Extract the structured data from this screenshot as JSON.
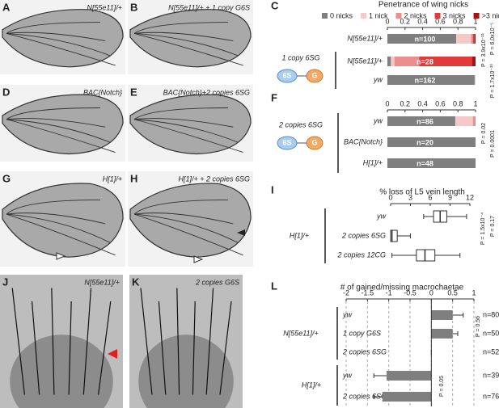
{
  "images": [
    {
      "letter": "A",
      "label": "N[55e11]/+"
    },
    {
      "letter": "B",
      "label": "N[55e11]/+ + 1 copy G6S"
    },
    {
      "letter": "D",
      "label": "BAC{Notch}"
    },
    {
      "letter": "E",
      "label": "BAC{Notch}+2 copies 6SG"
    },
    {
      "letter": "G",
      "label": "H[1]/+"
    },
    {
      "letter": "H",
      "label": "H[1]/+ + 2 copies 6SG"
    },
    {
      "letter": "J",
      "label": "N[55e11]/+"
    },
    {
      "letter": "K",
      "label": "2 copies G6S"
    }
  ],
  "chart_data": [
    {
      "panel": "C",
      "type": "bar",
      "orientation": "horizontal",
      "stacked": true,
      "title": "Penetrance of wing nicks",
      "legend": "top",
      "categories": [
        "N[55e11]/+",
        "N[55e11]/+",
        "yw"
      ],
      "group": {
        "label": "1 copy 6SG",
        "construct": [
          "6S",
          "G"
        ]
      },
      "series": [
        {
          "name": "0 nicks",
          "color": "#7f7f7f",
          "values": [
            0.78,
            0.04,
            0.99
          ]
        },
        {
          "name": "1 nick",
          "color": "#f6c9c9",
          "values": [
            0.17,
            0.04,
            0.01
          ]
        },
        {
          "name": "2 nicks",
          "color": "#ec8e8e",
          "values": [
            0.02,
            0.28,
            0
          ]
        },
        {
          "name": "3 nicks",
          "color": "#e03a3a",
          "values": [
            0.02,
            0.6,
            0
          ]
        },
        {
          "name": ">3 nicks",
          "color": "#a51414",
          "values": [
            0.01,
            0.04,
            0
          ]
        }
      ],
      "n_labels": [
        "n=100",
        "n=28",
        "n=162"
      ],
      "xlim": [
        0,
        1
      ],
      "xticks": [
        0,
        0.2,
        0.4,
        0.6,
        0.8,
        1
      ],
      "p_values": [
        "P = 3.9x10⁻¹¹",
        "P = 6.0x10⁻⁵",
        "P = 1.7x10⁻¹⁰"
      ]
    },
    {
      "panel": "F",
      "type": "bar",
      "orientation": "horizontal",
      "stacked": true,
      "categories": [
        "yw",
        "BAC{Notch}",
        "H[1]/+"
      ],
      "group": {
        "label": "2 copies 6SG",
        "construct": [
          "6S",
          "G"
        ]
      },
      "series": [
        {
          "color": "#7f7f7f",
          "values": [
            0.77,
            1,
            1
          ]
        },
        {
          "color": "#f6c9c9",
          "values": [
            0.2,
            0,
            0
          ]
        },
        {
          "color": "#ec8e8e",
          "values": [
            0.03,
            0,
            0
          ]
        },
        {
          "color": "#e03a3a",
          "values": [
            0,
            0,
            0
          ]
        },
        {
          "color": "#a51414",
          "values": [
            0,
            0,
            0
          ]
        }
      ],
      "n_labels": [
        "n=86",
        "n=20",
        "n=48"
      ],
      "xlim": [
        0,
        1
      ],
      "xticks": [
        0,
        0.2,
        0.4,
        0.6,
        0.8,
        1
      ],
      "p_values": [
        "P = 0.02",
        "P = 0.0001"
      ]
    },
    {
      "panel": "I",
      "type": "box",
      "title": "% loss of L5 vein length",
      "categories": [
        "yw",
        "2 copies 6SG",
        "2 copies 12CG"
      ],
      "group": {
        "label": "H[1]/+"
      },
      "boxes": [
        {
          "min": 5,
          "q1": 6.5,
          "median": 7.5,
          "q3": 8.5,
          "max": 11.5
        },
        {
          "min": 0,
          "q1": 0,
          "median": 0.2,
          "q3": 1,
          "max": 3
        },
        {
          "min": 0.2,
          "q1": 3.9,
          "median": 5.2,
          "q3": 6.7,
          "max": 10.5
        }
      ],
      "xlim": [
        0,
        12
      ],
      "xticks": [
        0,
        3,
        6,
        9,
        12
      ],
      "p_values": [
        "P = 1.5x10⁻⁴",
        "P = 0.17"
      ]
    },
    {
      "panel": "L",
      "type": "bar",
      "orientation": "horizontal",
      "title": "# of gained/missing macrochaetae",
      "categories": [
        "yw",
        "1 copy G6S",
        "2 copies 6SG",
        "yw",
        "2 copies 6SG"
      ],
      "groups": [
        {
          "label": "N[55e11]/+"
        },
        {
          "label": "H[1]/+"
        }
      ],
      "values": [
        0.5,
        0.5,
        0,
        -1.05,
        -1.15
      ],
      "errors": [
        0.25,
        0.12,
        0,
        0.3,
        0.2
      ],
      "color": "#7f7f7f",
      "n_labels": [
        "n=80",
        "n=50",
        "n=52",
        "n=39",
        "n=76"
      ],
      "xlim": [
        -2,
        1
      ],
      "xticks": [
        -2,
        -1.5,
        -1,
        -0.5,
        0,
        0.5,
        1
      ],
      "grid": true,
      "p_values": [
        "P = 0.56",
        "P = 0.05"
      ]
    }
  ]
}
